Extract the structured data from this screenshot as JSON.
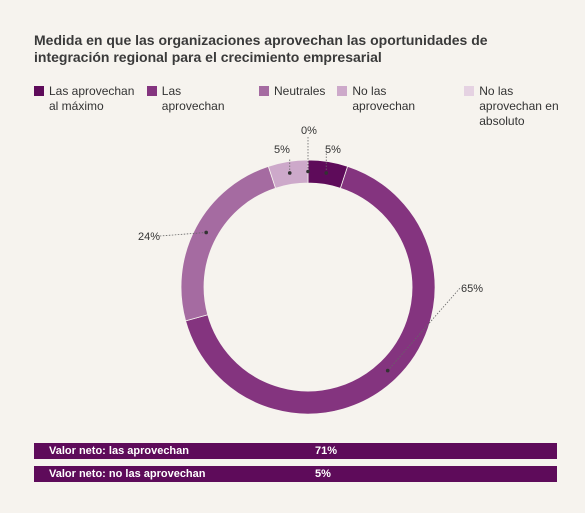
{
  "title": "Medida en que las organizaciones aprovechan las oportunidades de integración regional para el crecimiento empresarial",
  "chart_data": {
    "type": "pie",
    "categories": [
      "Las aprovechan al máximo",
      "Las aprovechan",
      "Neutrales",
      "No las aprovechan",
      "No las aprovechan en absoluto"
    ],
    "values": [
      5,
      65,
      24,
      5,
      0
    ],
    "data_labels": [
      "5%",
      "65%",
      "24%",
      "5%",
      "0%"
    ],
    "colors": [
      "#5e0b5a",
      "#84347f",
      "#a56ba1",
      "#cda9ca",
      "#e5d2e2"
    ],
    "legend_position": "top"
  },
  "legend": [
    {
      "label": "Las aprovechan al máximo",
      "color": "#5e0b5a"
    },
    {
      "label": "Las aprovechan",
      "color": "#84347f"
    },
    {
      "label": "Neutrales",
      "color": "#a56ba1"
    },
    {
      "label": "No las aprovechan",
      "color": "#cda9ca"
    },
    {
      "label": "No las aprovechan en absoluto",
      "color": "#e5d2e2"
    }
  ],
  "net_values": [
    {
      "label": "Valor neto: las aprovechan",
      "value": "71%"
    },
    {
      "label": "Valor neto: no las aprovechan",
      "value": "5%"
    }
  ]
}
